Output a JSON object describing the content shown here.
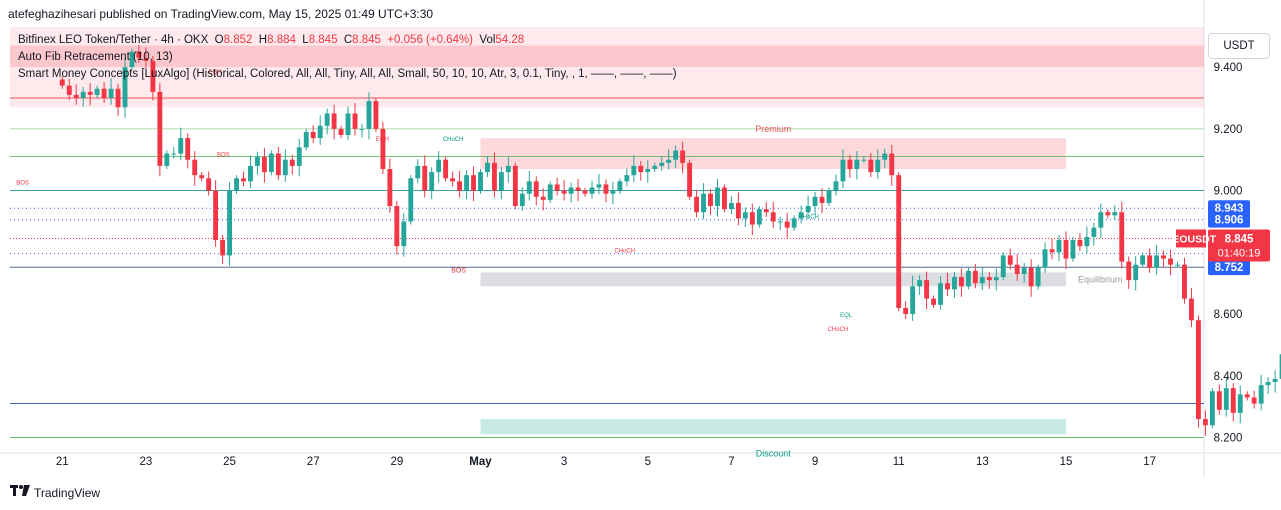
{
  "header": {
    "byline": "atefeghazihesari published on TradingView.com, May 15, 2025 01:49 UTC+3:30"
  },
  "legend": {
    "symbol": "Bitfinex LEO Token/Tether · 4h · OKX",
    "o_label": "O",
    "o_value": "8.852",
    "h_label": "H",
    "h_value": "8.884",
    "l_label": "L",
    "l_value": "8.845",
    "c_label": "C",
    "c_value": "8.845",
    "change": "+0.056 (+0.64%)",
    "vol_label": "Vol",
    "vol_value": "54.28",
    "indicator1": "Auto Fib Retracement (10, 13)",
    "indicator2": "Smart Money Concepts [LuxAlgo] (Historical, Colored, All, All, Tiny, All, All, Small, 50, 10, 10, Atr, 3, 0.1, Tiny, , 1, ——, ——, ——)"
  },
  "currency_button": "USDT",
  "footer": {
    "logo_text": "TradingView"
  },
  "colors": {
    "up": "#26a69a",
    "down": "#f23645",
    "premium": "#f7525f",
    "discount": "#22ab94",
    "equilibrium": "#b2b5be",
    "blue": "#2962ff",
    "price_label": "#f23645",
    "level_label": "#2962ff"
  },
  "chart_data": {
    "type": "candlestick",
    "timeframe": "4h",
    "ylim": [
      8.15,
      9.53
    ],
    "y_ticks": [
      "9.400",
      "9.200",
      "9.000",
      "8.600",
      "8.400",
      "8.200"
    ],
    "x_ticks": [
      "21",
      "23",
      "25",
      "27",
      "29",
      "May",
      "3",
      "5",
      "7",
      "9",
      "11",
      "13",
      "15",
      "17"
    ],
    "x_tick_positions": [
      0,
      2,
      4,
      6,
      8,
      10,
      12,
      14,
      16,
      18,
      20,
      22,
      24,
      26
    ],
    "x_start": -1.25,
    "x_end": 27.3,
    "bars_per_day": 6,
    "closes": [
      9.34,
      9.31,
      9.3,
      9.32,
      9.31,
      9.33,
      9.3,
      9.33,
      9.27,
      9.4,
      9.45,
      9.43,
      9.42,
      9.32,
      9.08,
      9.12,
      9.12,
      9.17,
      9.1,
      9.05,
      9.04,
      9.0,
      8.84,
      8.79,
      9.0,
      9.04,
      9.03,
      9.08,
      9.11,
      9.06,
      9.12,
      9.05,
      9.1,
      9.08,
      9.14,
      9.19,
      9.17,
      9.21,
      9.25,
      9.2,
      9.18,
      9.25,
      9.2,
      9.2,
      9.29,
      9.2,
      9.07,
      8.95,
      8.82,
      8.9,
      9.04,
      9.08,
      9.0,
      9.06,
      9.1,
      9.04,
      9.03,
      9.0,
      9.05,
      9.0,
      9.06,
      9.09,
      9.0,
      9.06,
      9.08,
      8.95,
      8.99,
      9.03,
      8.98,
      8.97,
      9.02,
      9.0,
      8.99,
      9.01,
      9.0,
      8.99,
      9.01,
      9.02,
      8.99,
      9.0,
      9.03,
      9.05,
      9.08,
      9.06,
      9.07,
      9.08,
      9.09,
      9.1,
      9.13,
      9.09,
      8.98,
      8.93,
      8.99,
      8.95,
      9.01,
      8.94,
      8.96,
      8.91,
      8.93,
      8.89,
      8.94,
      8.93,
      8.9,
      8.9,
      8.88,
      8.91,
      8.93,
      8.95,
      8.98,
      8.96,
      9.0,
      9.03,
      9.1,
      9.07,
      9.1,
      9.1,
      9.06,
      9.1,
      9.12,
      9.05,
      8.62,
      8.6,
      8.69,
      8.71,
      8.65,
      8.63,
      8.7,
      8.68,
      8.72,
      8.69,
      8.74,
      8.7,
      8.72,
      8.71,
      8.72,
      8.79,
      8.76,
      8.73,
      8.75,
      8.69,
      8.75,
      8.81,
      8.8,
      8.84,
      8.78,
      8.84,
      8.82,
      8.85,
      8.88,
      8.93,
      8.92,
      8.93,
      8.77,
      8.71,
      8.76,
      8.79,
      8.75,
      8.79,
      8.78,
      8.76,
      8.76,
      8.65,
      8.58,
      8.26,
      8.24,
      8.35,
      8.29,
      8.36,
      8.28,
      8.34,
      8.33,
      8.31,
      8.37,
      8.38,
      8.39,
      8.47,
      8.51,
      8.55,
      8.56,
      8.59,
      8.61,
      8.62,
      8.64,
      8.62,
      8.61,
      8.61,
      8.67,
      8.72,
      8.8,
      8.77,
      8.81,
      8.82,
      8.85,
      8.8,
      8.85
    ],
    "fib_levels": [
      9.2,
      9.0,
      8.6,
      8.2
    ],
    "levels": [
      {
        "price": "8.943",
        "value": 8.943
      },
      {
        "price": "8.906",
        "value": 8.906
      },
      {
        "price": "8.796",
        "value": 8.796
      },
      {
        "price": "8.752",
        "value": 8.752
      }
    ],
    "price_label": {
      "symbol": "LEOUSDT",
      "price": "8.845",
      "countdown": "01:40:19",
      "value": 8.845
    },
    "zones": {
      "premium": "Premium",
      "discount": "Discount",
      "equilibrium": "Equilibrium"
    },
    "markers": {
      "eqh": "EQH",
      "eql": "EQL",
      "bos": "BOS",
      "choch": "CHoCH"
    }
  }
}
